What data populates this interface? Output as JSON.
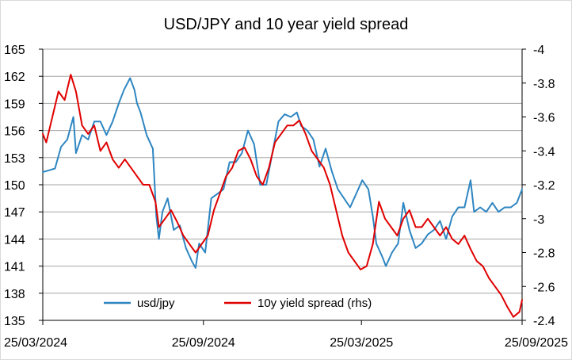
{
  "chart_data": {
    "type": "line",
    "title": "USD/JPY and 10 year yield spread",
    "xlabel": "",
    "ylabel": "",
    "y2label": "",
    "x_tick_labels": [
      "25/03/2024",
      "25/09/2024",
      "25/03/2025",
      "25/09/2025"
    ],
    "x_range": [
      "2024-03-25",
      "2025-09-25"
    ],
    "ylim": [
      135,
      165
    ],
    "y_ticks": [
      165,
      162,
      159,
      156,
      153,
      150,
      147,
      144,
      141,
      138,
      135
    ],
    "y2lim": [
      -2.4,
      -4.0
    ],
    "y2_ticks": [
      -4,
      -3.8,
      -3.6,
      -3.4,
      -3.2,
      -3,
      -2.8,
      -2.6,
      -2.4
    ],
    "grid": "horizontal",
    "legend_position": "bottom-left inside plot",
    "series": [
      {
        "name": "usd/jpy",
        "axis": "left",
        "color": "#2E86C1",
        "points": [
          [
            "2024-03-25",
            151.4
          ],
          [
            "2024-04-01",
            151.6
          ],
          [
            "2024-04-08",
            151.8
          ],
          [
            "2024-04-15",
            154.2
          ],
          [
            "2024-04-22",
            155.0
          ],
          [
            "2024-04-29",
            157.5
          ],
          [
            "2024-05-02",
            153.5
          ],
          [
            "2024-05-09",
            155.5
          ],
          [
            "2024-05-16",
            155.0
          ],
          [
            "2024-05-23",
            157.0
          ],
          [
            "2024-05-30",
            157.0
          ],
          [
            "2024-06-06",
            155.5
          ],
          [
            "2024-06-13",
            157.0
          ],
          [
            "2024-06-20",
            159.0
          ],
          [
            "2024-06-26",
            160.5
          ],
          [
            "2024-07-03",
            161.8
          ],
          [
            "2024-07-08",
            160.5
          ],
          [
            "2024-07-11",
            159.0
          ],
          [
            "2024-07-15",
            158.0
          ],
          [
            "2024-07-22",
            155.5
          ],
          [
            "2024-07-29",
            154.0
          ],
          [
            "2024-08-02",
            146.5
          ],
          [
            "2024-08-05",
            144.0
          ],
          [
            "2024-08-09",
            147.0
          ],
          [
            "2024-08-15",
            148.5
          ],
          [
            "2024-08-22",
            145.0
          ],
          [
            "2024-08-29",
            145.5
          ],
          [
            "2024-09-05",
            143.0
          ],
          [
            "2024-09-12",
            141.5
          ],
          [
            "2024-09-16",
            140.8
          ],
          [
            "2024-09-20",
            143.5
          ],
          [
            "2024-09-27",
            142.5
          ],
          [
            "2024-10-04",
            148.5
          ],
          [
            "2024-10-11",
            149.0
          ],
          [
            "2024-10-18",
            149.5
          ],
          [
            "2024-10-25",
            152.5
          ],
          [
            "2024-11-01",
            152.5
          ],
          [
            "2024-11-08",
            153.5
          ],
          [
            "2024-11-15",
            156.0
          ],
          [
            "2024-11-22",
            154.5
          ],
          [
            "2024-11-29",
            150.0
          ],
          [
            "2024-12-06",
            150.0
          ],
          [
            "2024-12-13",
            153.5
          ],
          [
            "2024-12-20",
            157.0
          ],
          [
            "2024-12-27",
            157.8
          ],
          [
            "2025-01-03",
            157.5
          ],
          [
            "2025-01-10",
            158.0
          ],
          [
            "2025-01-15",
            156.5
          ],
          [
            "2025-01-22",
            156.0
          ],
          [
            "2025-01-29",
            155.0
          ],
          [
            "2025-02-05",
            152.0
          ],
          [
            "2025-02-12",
            154.0
          ],
          [
            "2025-02-19",
            151.5
          ],
          [
            "2025-02-26",
            149.5
          ],
          [
            "2025-03-05",
            148.5
          ],
          [
            "2025-03-12",
            147.5
          ],
          [
            "2025-03-19",
            149.0
          ],
          [
            "2025-03-26",
            150.5
          ],
          [
            "2025-04-02",
            149.5
          ],
          [
            "2025-04-07",
            146.5
          ],
          [
            "2025-04-11",
            143.5
          ],
          [
            "2025-04-18",
            142.0
          ],
          [
            "2025-04-22",
            141.0
          ],
          [
            "2025-04-29",
            142.5
          ],
          [
            "2025-05-06",
            143.5
          ],
          [
            "2025-05-12",
            148.0
          ],
          [
            "2025-05-19",
            145.0
          ],
          [
            "2025-05-26",
            143.0
          ],
          [
            "2025-06-02",
            143.5
          ],
          [
            "2025-06-09",
            144.5
          ],
          [
            "2025-06-16",
            145.0
          ],
          [
            "2025-06-23",
            146.0
          ],
          [
            "2025-06-30",
            144.0
          ],
          [
            "2025-07-07",
            146.5
          ],
          [
            "2025-07-14",
            147.5
          ],
          [
            "2025-07-21",
            147.5
          ],
          [
            "2025-07-28",
            150.5
          ],
          [
            "2025-08-01",
            147.0
          ],
          [
            "2025-08-08",
            147.5
          ],
          [
            "2025-08-15",
            147.0
          ],
          [
            "2025-08-22",
            148.0
          ],
          [
            "2025-08-29",
            147.0
          ],
          [
            "2025-09-05",
            147.5
          ],
          [
            "2025-09-12",
            147.5
          ],
          [
            "2025-09-19",
            148.0
          ],
          [
            "2025-09-25",
            149.5
          ]
        ]
      },
      {
        "name": "10y yield spread (rhs)",
        "axis": "right",
        "color": "#E00000",
        "points": [
          [
            "2024-03-25",
            -3.5
          ],
          [
            "2024-03-29",
            -3.45
          ],
          [
            "2024-04-05",
            -3.6
          ],
          [
            "2024-04-12",
            -3.75
          ],
          [
            "2024-04-19",
            -3.7
          ],
          [
            "2024-04-26",
            -3.85
          ],
          [
            "2024-05-02",
            -3.75
          ],
          [
            "2024-05-09",
            -3.55
          ],
          [
            "2024-05-16",
            -3.5
          ],
          [
            "2024-05-23",
            -3.55
          ],
          [
            "2024-05-30",
            -3.4
          ],
          [
            "2024-06-06",
            -3.45
          ],
          [
            "2024-06-13",
            -3.35
          ],
          [
            "2024-06-20",
            -3.3
          ],
          [
            "2024-06-27",
            -3.35
          ],
          [
            "2024-07-04",
            -3.3
          ],
          [
            "2024-07-11",
            -3.25
          ],
          [
            "2024-07-18",
            -3.2
          ],
          [
            "2024-07-25",
            -3.2
          ],
          [
            "2024-08-01",
            -3.1
          ],
          [
            "2024-08-05",
            -2.95
          ],
          [
            "2024-08-12",
            -3.0
          ],
          [
            "2024-08-19",
            -3.05
          ],
          [
            "2024-08-26",
            -2.98
          ],
          [
            "2024-09-02",
            -2.9
          ],
          [
            "2024-09-09",
            -2.85
          ],
          [
            "2024-09-16",
            -2.8
          ],
          [
            "2024-09-23",
            -2.85
          ],
          [
            "2024-09-30",
            -2.9
          ],
          [
            "2024-10-07",
            -3.05
          ],
          [
            "2024-10-14",
            -3.15
          ],
          [
            "2024-10-21",
            -3.25
          ],
          [
            "2024-10-28",
            -3.3
          ],
          [
            "2024-11-04",
            -3.4
          ],
          [
            "2024-11-11",
            -3.42
          ],
          [
            "2024-11-18",
            -3.35
          ],
          [
            "2024-11-25",
            -3.25
          ],
          [
            "2024-12-02",
            -3.2
          ],
          [
            "2024-12-09",
            -3.3
          ],
          [
            "2024-12-16",
            -3.45
          ],
          [
            "2024-12-23",
            -3.5
          ],
          [
            "2024-12-30",
            -3.55
          ],
          [
            "2025-01-06",
            -3.55
          ],
          [
            "2025-01-13",
            -3.58
          ],
          [
            "2025-01-20",
            -3.5
          ],
          [
            "2025-01-27",
            -3.4
          ],
          [
            "2025-02-03",
            -3.35
          ],
          [
            "2025-02-10",
            -3.3
          ],
          [
            "2025-02-17",
            -3.2
          ],
          [
            "2025-02-24",
            -3.05
          ],
          [
            "2025-03-03",
            -2.9
          ],
          [
            "2025-03-10",
            -2.8
          ],
          [
            "2025-03-17",
            -2.75
          ],
          [
            "2025-03-24",
            -2.7
          ],
          [
            "2025-03-31",
            -2.72
          ],
          [
            "2025-04-07",
            -2.85
          ],
          [
            "2025-04-14",
            -3.1
          ],
          [
            "2025-04-21",
            -3.0
          ],
          [
            "2025-04-28",
            -2.95
          ],
          [
            "2025-05-05",
            -2.9
          ],
          [
            "2025-05-12",
            -3.0
          ],
          [
            "2025-05-19",
            -3.05
          ],
          [
            "2025-05-26",
            -2.95
          ],
          [
            "2025-06-02",
            -2.95
          ],
          [
            "2025-06-09",
            -3.0
          ],
          [
            "2025-06-16",
            -2.95
          ],
          [
            "2025-06-23",
            -2.9
          ],
          [
            "2025-06-30",
            -2.95
          ],
          [
            "2025-07-07",
            -2.88
          ],
          [
            "2025-07-14",
            -2.85
          ],
          [
            "2025-07-21",
            -2.9
          ],
          [
            "2025-07-28",
            -2.82
          ],
          [
            "2025-08-04",
            -2.75
          ],
          [
            "2025-08-11",
            -2.72
          ],
          [
            "2025-08-18",
            -2.65
          ],
          [
            "2025-08-25",
            -2.6
          ],
          [
            "2025-09-01",
            -2.55
          ],
          [
            "2025-09-08",
            -2.48
          ],
          [
            "2025-09-15",
            -2.42
          ],
          [
            "2025-09-22",
            -2.45
          ],
          [
            "2025-09-25",
            -2.52
          ]
        ]
      }
    ]
  }
}
